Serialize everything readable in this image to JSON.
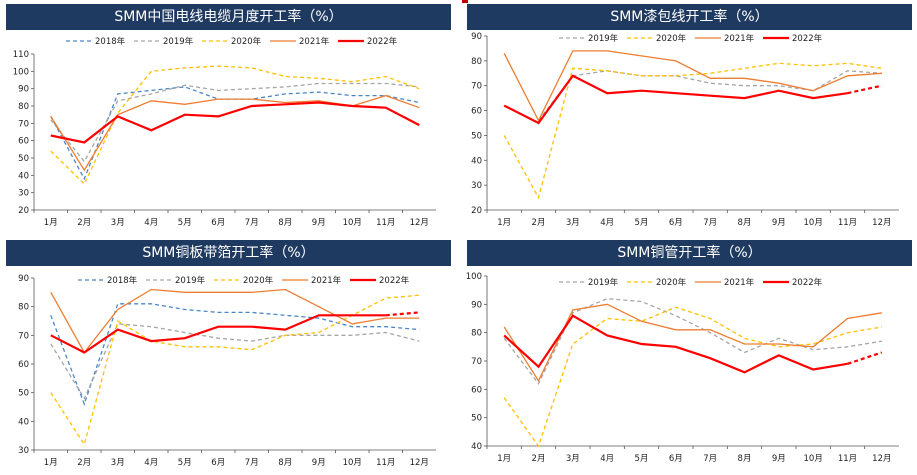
{
  "colors": {
    "title_bg": "#1f3a60",
    "accent": "#c00000",
    "y2018": "#4a86c5",
    "y2019": "#a6a6a6",
    "y2020": "#ffc000",
    "y2021": "#ed7d31",
    "y2022": "#ff0000"
  },
  "source_text": "",
  "chart_data": [
    {
      "type": "line",
      "title": "SMM中国电线电缆月度开工率（%）",
      "categories": [
        "1月",
        "2月",
        "3月",
        "4月",
        "5月",
        "6月",
        "7月",
        "8月",
        "9月",
        "10月",
        "11月",
        "12月"
      ],
      "ylim": [
        20,
        110
      ],
      "yticks": [
        20,
        30,
        40,
        50,
        60,
        70,
        80,
        90,
        100,
        110
      ],
      "series": [
        {
          "name": "2018年",
          "key": "y2018",
          "dash": "dash",
          "values": [
            74,
            38,
            87,
            89,
            91,
            84,
            84,
            87,
            88,
            86,
            86,
            82
          ]
        },
        {
          "name": "2019年",
          "key": "y2019",
          "dash": "dash",
          "values": [
            72,
            48,
            83,
            87,
            92,
            89,
            90,
            91,
            93,
            93,
            93,
            91
          ]
        },
        {
          "name": "2020年",
          "key": "y2020",
          "dash": "dash",
          "values": [
            54,
            35,
            76,
            100,
            102,
            103,
            102,
            97,
            96,
            94,
            97,
            90
          ]
        },
        {
          "name": "2021年",
          "key": "y2021",
          "dash": "solid",
          "values": [
            74,
            43,
            75,
            83,
            81,
            84,
            84,
            82,
            83,
            80,
            86,
            79
          ]
        },
        {
          "name": "2022年",
          "key": "y2022",
          "dash": "solid",
          "values": [
            63,
            59,
            74,
            66,
            75,
            74,
            80,
            81,
            82,
            80,
            79,
            69
          ]
        }
      ]
    },
    {
      "type": "line",
      "title": "SMM漆包线开工率（%）",
      "categories": [
        "1月",
        "2月",
        "3月",
        "4月",
        "5月",
        "6月",
        "7月",
        "8月",
        "9月",
        "10月",
        "11月",
        "12月"
      ],
      "ylim": [
        20,
        90
      ],
      "yticks": [
        20,
        30,
        40,
        50,
        60,
        70,
        80,
        90
      ],
      "series": [
        {
          "name": "2019年",
          "key": "y2019",
          "dash": "dash",
          "values": [
            null,
            56,
            74,
            76,
            74,
            74,
            71,
            70,
            70,
            68,
            76,
            75
          ]
        },
        {
          "name": "2020年",
          "key": "y2020",
          "dash": "dash",
          "values": [
            50,
            25,
            77,
            76,
            74,
            74,
            75,
            77,
            79,
            78,
            79,
            77
          ]
        },
        {
          "name": "2021年",
          "key": "y2021",
          "dash": "solid",
          "values": [
            83,
            56,
            84,
            84,
            82,
            80,
            73,
            73,
            71,
            68,
            74,
            75
          ]
        },
        {
          "name": "2022年",
          "key": "y2022",
          "dash": "solid",
          "solid_until": 10,
          "values": [
            62,
            55,
            74,
            67,
            68,
            67,
            66,
            65,
            68,
            65,
            67,
            70
          ]
        }
      ]
    },
    {
      "type": "line",
      "title": "SMM铜板带箔开工率（%）",
      "categories": [
        "1月",
        "2月",
        "3月",
        "4月",
        "5月",
        "6月",
        "7月",
        "8月",
        "9月",
        "10月",
        "11月",
        "12月"
      ],
      "ylim": [
        30,
        90
      ],
      "yticks": [
        30,
        40,
        50,
        60,
        70,
        80,
        90
      ],
      "series": [
        {
          "name": "2018年",
          "key": "y2018",
          "dash": "dash",
          "values": [
            77,
            46,
            81,
            81,
            79,
            78,
            78,
            77,
            76,
            73,
            73,
            72
          ]
        },
        {
          "name": "2019年",
          "key": "y2019",
          "dash": "dash",
          "values": [
            67,
            48,
            74,
            73,
            71,
            69,
            68,
            70,
            70,
            70,
            71,
            68
          ]
        },
        {
          "name": "2020年",
          "key": "y2020",
          "dash": "dash",
          "values": [
            50,
            32,
            75,
            68,
            66,
            66,
            65,
            70,
            71,
            77,
            83,
            84
          ]
        },
        {
          "name": "2021年",
          "key": "y2021",
          "dash": "solid",
          "values": [
            85,
            64,
            79,
            86,
            85,
            85,
            85,
            86,
            80,
            74,
            76,
            76
          ]
        },
        {
          "name": "2022年",
          "key": "y2022",
          "dash": "solid",
          "solid_until": 10,
          "values": [
            70,
            64,
            72,
            68,
            69,
            73,
            73,
            72,
            77,
            77,
            77,
            78
          ]
        }
      ]
    },
    {
      "type": "line",
      "title": "SMM铜管开工率（%）",
      "categories": [
        "1月",
        "2月",
        "3月",
        "4月",
        "5月",
        "6月",
        "7月",
        "8月",
        "9月",
        "10月",
        "11月",
        "12月"
      ],
      "ylim": [
        40,
        100
      ],
      "yticks": [
        40,
        50,
        60,
        70,
        80,
        90,
        100
      ],
      "series": [
        {
          "name": "2019年",
          "key": "y2019",
          "dash": "dash",
          "values": [
            78,
            62,
            87,
            92,
            91,
            86,
            80,
            73,
            78,
            74,
            75,
            77
          ]
        },
        {
          "name": "2020年",
          "key": "y2020",
          "dash": "dash",
          "values": [
            57,
            40,
            76,
            85,
            84,
            89,
            85,
            78,
            75,
            76,
            80,
            82
          ]
        },
        {
          "name": "2021年",
          "key": "y2021",
          "dash": "solid",
          "values": [
            82,
            63,
            88,
            90,
            84,
            81,
            81,
            76,
            76,
            75,
            85,
            87
          ]
        },
        {
          "name": "2022年",
          "key": "y2022",
          "dash": "solid",
          "solid_until": 10,
          "values": [
            79,
            68,
            86,
            79,
            76,
            75,
            71,
            66,
            72,
            67,
            69,
            73
          ]
        }
      ]
    }
  ]
}
